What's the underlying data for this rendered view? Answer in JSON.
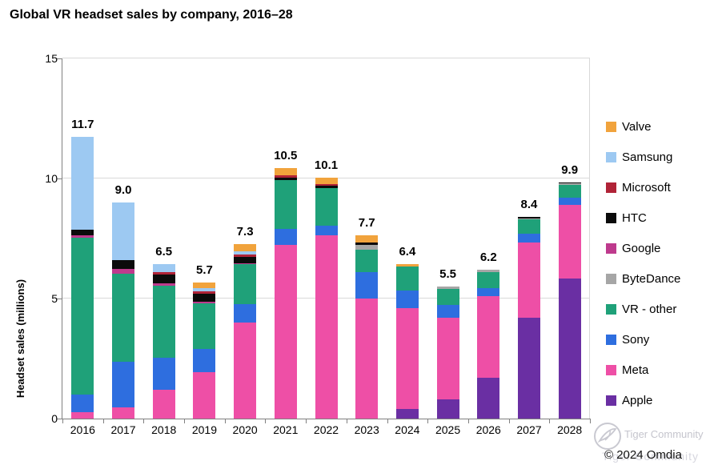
{
  "title": "Global VR headset sales by company, 2016–28",
  "y_axis": {
    "label": "Headset sales (millions)",
    "ticks": [
      {
        "label": "15",
        "value": 15
      },
      {
        "label": "10",
        "value": 10
      },
      {
        "label": "5",
        "value": 5
      },
      {
        "label": "0",
        "value": 0
      }
    ]
  },
  "watermark": {
    "brand": "Tiger Community",
    "copyright": "© 2024 Omdia"
  },
  "chart_data": {
    "type": "bar",
    "stacked": true,
    "title": "Global VR headset sales by company, 2016–28",
    "xlabel": "",
    "ylabel": "Headset sales (millions)",
    "ylim": [
      0,
      15
    ],
    "grid": "horizontal",
    "legend_position": "right",
    "categories": [
      "2016",
      "2017",
      "2018",
      "2019",
      "2020",
      "2021",
      "2022",
      "2023",
      "2024",
      "2025",
      "2026",
      "2027",
      "2028"
    ],
    "totals_labels": [
      "11.7",
      "9.0",
      "6.5",
      "5.7",
      "7.3",
      "10.5",
      "10.1",
      "7.7",
      "6.4",
      "5.5",
      "6.2",
      "8.4",
      "9.9"
    ],
    "series": [
      {
        "name": "Valve",
        "color": "#F1A33C",
        "values": [
          0,
          0,
          0,
          0.25,
          0.3,
          0.3,
          0.27,
          0.3,
          0.1,
          0,
          0,
          0,
          0
        ]
      },
      {
        "name": "Samsung",
        "color": "#9DC9F2",
        "values": [
          3.85,
          2.4,
          0.35,
          0.12,
          0.11,
          0,
          0,
          0,
          0,
          0,
          0,
          0,
          0
        ]
      },
      {
        "name": "Microsoft",
        "color": "#B02337",
        "values": [
          0,
          0,
          0.1,
          0.1,
          0.11,
          0.1,
          0.08,
          0,
          0,
          0,
          0,
          0,
          0
        ]
      },
      {
        "name": "HTC",
        "color": "#0b0b0b",
        "values": [
          0.25,
          0.37,
          0.35,
          0.35,
          0.26,
          0.1,
          0.1,
          0.1,
          0,
          0,
          0,
          0.05,
          0.05
        ]
      },
      {
        "name": "Google",
        "color": "#BE3A8D",
        "values": [
          0.08,
          0.2,
          0.12,
          0.06,
          0.05,
          0,
          0,
          0,
          0,
          0,
          0,
          0,
          0
        ]
      },
      {
        "name": "ByteDance",
        "color": "#A6A6A6",
        "values": [
          0,
          0,
          0,
          0,
          0,
          0,
          0,
          0.2,
          0,
          0.1,
          0.1,
          0.05,
          0.05
        ]
      },
      {
        "name": "VR - other",
        "color": "#1FA179",
        "values": [
          6.55,
          3.65,
          3.0,
          1.9,
          1.65,
          2.05,
          1.55,
          0.95,
          1.0,
          0.65,
          0.65,
          0.6,
          0.55
        ]
      },
      {
        "name": "Sony",
        "color": "#2E6EDF",
        "values": [
          0.73,
          1.9,
          1.33,
          0.95,
          0.78,
          0.65,
          0.4,
          1.1,
          0.75,
          0.55,
          0.35,
          0.35,
          0.3
        ]
      },
      {
        "name": "Meta",
        "color": "#EE4FA6",
        "values": [
          0.27,
          0.47,
          1.2,
          1.95,
          4.0,
          7.25,
          7.65,
          5.0,
          4.2,
          3.4,
          3.4,
          3.15,
          3.05
        ]
      },
      {
        "name": "Apple",
        "color": "#6A2FA3",
        "values": [
          0,
          0,
          0,
          0,
          0,
          0,
          0,
          0,
          0.4,
          0.8,
          1.7,
          4.2,
          5.85
        ]
      }
    ]
  }
}
